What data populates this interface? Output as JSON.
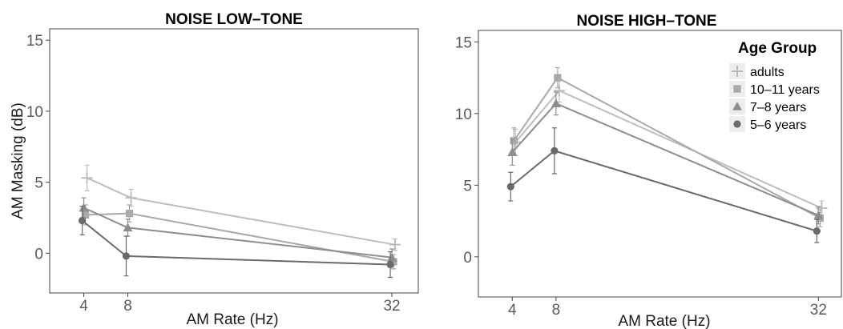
{
  "chart_data": [
    {
      "type": "line",
      "title": "NOISE LOW–TONE",
      "xlabel": "AM Rate (Hz)",
      "ylabel": "AM Masking (dB)",
      "x": [
        4,
        8,
        32
      ],
      "xticks": [
        "4",
        "8",
        "32"
      ],
      "ylim": [
        -2.8,
        15.8
      ],
      "yticks": [
        "0",
        "5",
        "10",
        "15"
      ],
      "grid": false,
      "series": [
        {
          "name": "adults",
          "marker": "plus",
          "color": "#bdbdbd",
          "values": [
            5.3,
            3.9,
            0.6
          ],
          "err": [
            0.9,
            0.6,
            0.4
          ]
        },
        {
          "name": "10–11 years",
          "marker": "square",
          "color": "#a9a9a9",
          "values": [
            2.7,
            2.8,
            -0.6
          ],
          "err": [
            0.7,
            0.6,
            0.5
          ]
        },
        {
          "name": "7–8 years",
          "marker": "triangle",
          "color": "#8e8e8e",
          "values": [
            3.2,
            1.8,
            -0.3
          ],
          "err": [
            0.7,
            0.6,
            0.6
          ]
        },
        {
          "name": "5–6 years",
          "marker": "circle",
          "color": "#6a6a6a",
          "values": [
            2.3,
            -0.2,
            -0.8
          ],
          "err": [
            1.0,
            1.4,
            0.9
          ]
        }
      ]
    },
    {
      "type": "line",
      "title": "NOISE HIGH–TONE",
      "xlabel": "AM Rate (Hz)",
      "ylabel": "",
      "x": [
        4,
        8,
        32
      ],
      "xticks": [
        "4",
        "8",
        "32"
      ],
      "ylim": [
        -2.8,
        15.8
      ],
      "yticks": [
        "0",
        "5",
        "10",
        "15"
      ],
      "grid": false,
      "legend": {
        "title": "Age Group",
        "position": "top-right"
      },
      "series": [
        {
          "name": "adults",
          "marker": "plus",
          "color": "#bdbdbd",
          "values": [
            8.0,
            11.6,
            3.4
          ],
          "err": [
            0.9,
            0.8,
            0.5
          ]
        },
        {
          "name": "10–11 years",
          "marker": "square",
          "color": "#a9a9a9",
          "values": [
            8.1,
            12.5,
            2.7
          ],
          "err": [
            0.9,
            0.7,
            0.6
          ]
        },
        {
          "name": "7–8 years",
          "marker": "triangle",
          "color": "#8e8e8e",
          "values": [
            7.3,
            10.7,
            2.9
          ],
          "err": [
            0.9,
            0.8,
            0.6
          ]
        },
        {
          "name": "5–6 years",
          "marker": "circle",
          "color": "#6a6a6a",
          "values": [
            4.9,
            7.4,
            1.8
          ],
          "err": [
            1.0,
            1.6,
            0.8
          ]
        }
      ]
    }
  ]
}
